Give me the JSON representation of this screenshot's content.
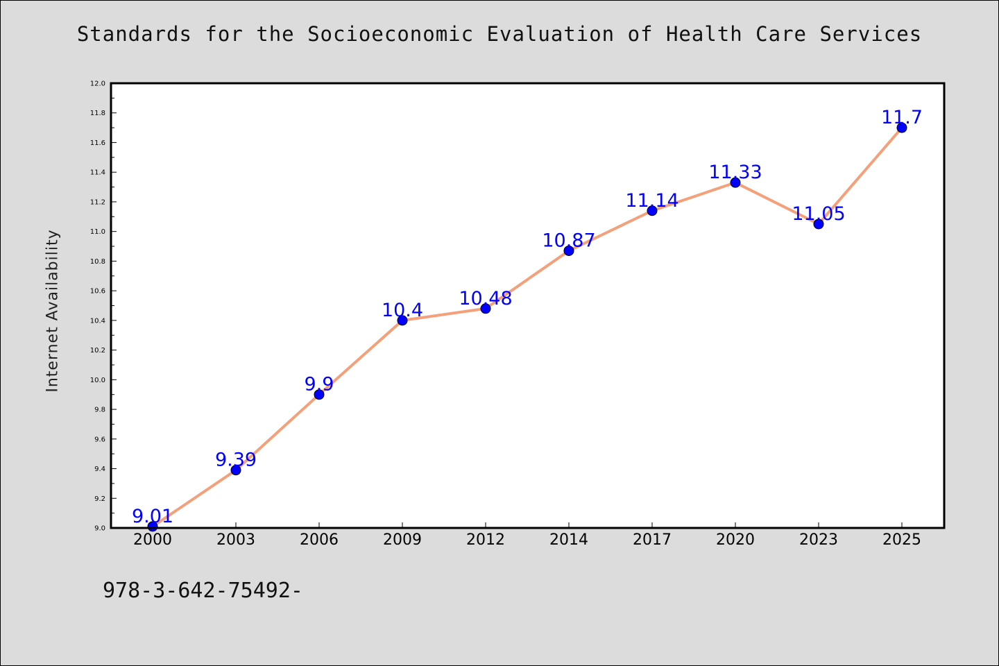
{
  "chart_data": {
    "type": "line",
    "title": "Standards for the Socioeconomic Evaluation of Health Care Services",
    "xlabel": "",
    "ylabel": "Internet Availability",
    "categories": [
      "2000",
      "2003",
      "2006",
      "2009",
      "2012",
      "2014",
      "2017",
      "2020",
      "2023",
      "2025"
    ],
    "series": [
      {
        "values": [
          9.01,
          9.39,
          9.9,
          10.4,
          10.48,
          10.87,
          11.14,
          11.33,
          11.05,
          11.7
        ],
        "data_labels": [
          "9.01",
          "9.39",
          "9.9",
          "10.4",
          "10.48",
          "10.87",
          "11.14",
          "11.33",
          "11.05",
          "11.7"
        ]
      }
    ],
    "ylim": [
      9.0,
      12.0
    ],
    "yticks": [
      "9.0",
      "9.2",
      "9.4",
      "9.6",
      "9.8",
      "10.0",
      "10.2",
      "10.4",
      "10.6",
      "10.8",
      "11.0",
      "11.2",
      "11.4",
      "11.6",
      "11.8",
      "12.0"
    ],
    "grid": false,
    "legend": "none"
  },
  "caption": "978-3-642-75492-",
  "colors": {
    "line": "#f4a07a",
    "marker": "#0000ff",
    "data_label": "#0000ff",
    "plot_background": "#ffffff",
    "figure_background": "#dcdcdc"
  }
}
